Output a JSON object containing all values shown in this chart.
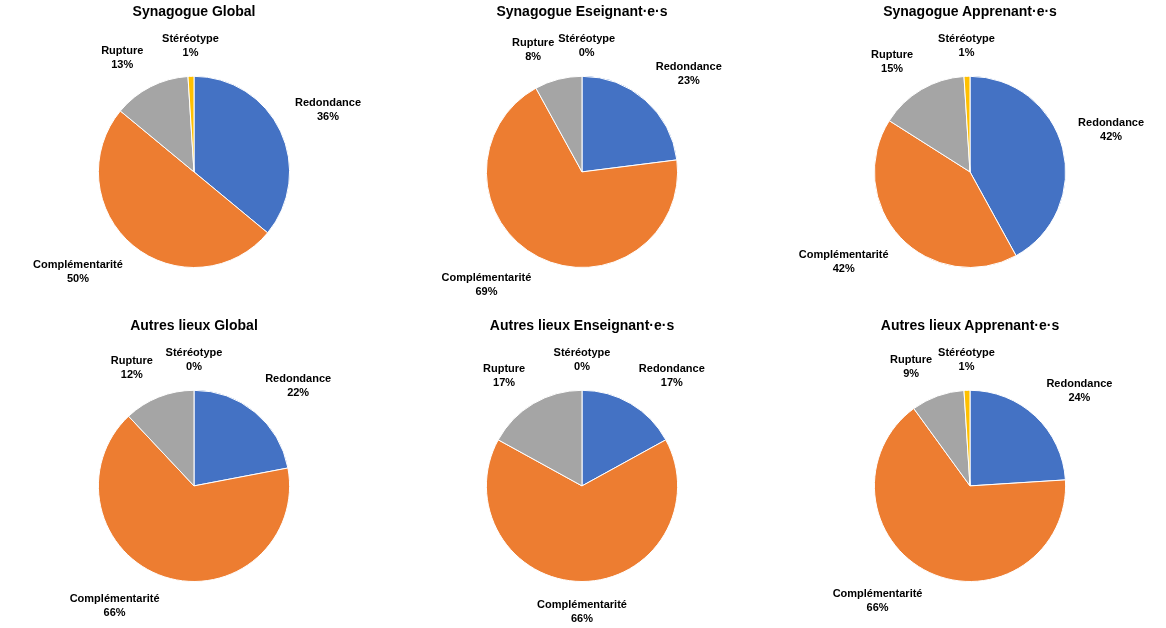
{
  "chart_data": [
    {
      "type": "pie",
      "title": "Synagogue Global",
      "categories": [
        "Redondance",
        "Complémentarité",
        "Rupture",
        "Stéréotype"
      ],
      "values": [
        36,
        50,
        13,
        1
      ],
      "value_labels": [
        "36%",
        "50%",
        "13%",
        "1%"
      ],
      "colors": [
        "#4472c4",
        "#ed7d31",
        "#a5a5a5",
        "#ffc000"
      ]
    },
    {
      "type": "pie",
      "title": "Synagogue Eseignant·e·s",
      "categories": [
        "Redondance",
        "Complémentarité",
        "Rupture",
        "Stéréotype"
      ],
      "values": [
        23,
        69,
        8,
        0
      ],
      "value_labels": [
        "23%",
        "69%",
        "8%",
        "0%"
      ],
      "colors": [
        "#4472c4",
        "#ed7d31",
        "#a5a5a5",
        "#ffc000"
      ]
    },
    {
      "type": "pie",
      "title": "Synagogue Apprenant·e·s",
      "categories": [
        "Redondance",
        "Complémentarité",
        "Rupture",
        "Stéréotype"
      ],
      "values": [
        42,
        42,
        15,
        1
      ],
      "value_labels": [
        "42%",
        "42%",
        "15%",
        "1%"
      ],
      "colors": [
        "#4472c4",
        "#ed7d31",
        "#a5a5a5",
        "#ffc000"
      ]
    },
    {
      "type": "pie",
      "title": "Autres lieux Global",
      "categories": [
        "Redondance",
        "Complémentarité",
        "Rupture",
        "Stéréotype"
      ],
      "values": [
        22,
        66,
        12,
        0
      ],
      "value_labels": [
        "22%",
        "66%",
        "12%",
        "0%"
      ],
      "colors": [
        "#4472c4",
        "#ed7d31",
        "#a5a5a5",
        "#ffc000"
      ]
    },
    {
      "type": "pie",
      "title": "Autres lieux Enseignant·e·s",
      "categories": [
        "Redondance",
        "Complémentarité",
        "Rupture",
        "Stéréotype"
      ],
      "values": [
        17,
        66,
        17,
        0
      ],
      "value_labels": [
        "17%",
        "66%",
        "17%",
        "0%"
      ],
      "colors": [
        "#4472c4",
        "#ed7d31",
        "#a5a5a5",
        "#ffc000"
      ]
    },
    {
      "type": "pie",
      "title": "Autres lieux Apprenant·e·s",
      "categories": [
        "Redondance",
        "Complémentarité",
        "Rupture",
        "Stéréotype"
      ],
      "values": [
        24,
        66,
        9,
        1
      ],
      "value_labels": [
        "24%",
        "66%",
        "9%",
        "1%"
      ],
      "colors": [
        "#4472c4",
        "#ed7d31",
        "#a5a5a5",
        "#ffc000"
      ]
    }
  ]
}
